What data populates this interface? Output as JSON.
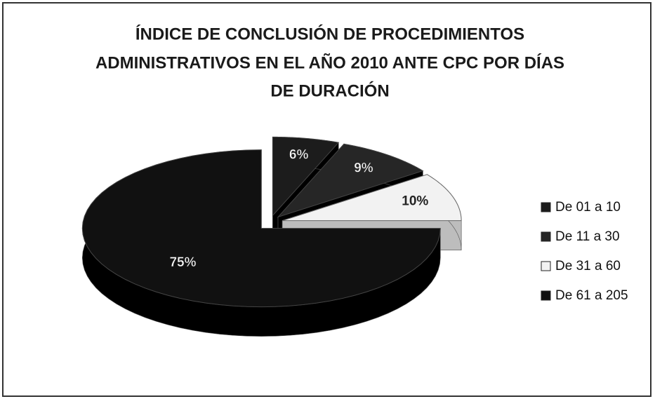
{
  "chart_data": {
    "type": "pie",
    "title": [
      "ÍNDICE DE CONCLUSIÓN DE PROCEDIMIENTOS",
      "ADMINISTRATIVOS EN EL AÑO 2010 ANTE CPC POR DÍAS",
      "DE DURACIÓN"
    ],
    "categories": [
      "De 01 a 10",
      "De 11 a 30",
      "De 31 a 60",
      "De 61 a 205"
    ],
    "values": [
      6,
      9,
      10,
      75
    ],
    "value_labels": [
      "6%",
      "9%",
      "10%",
      "75%"
    ],
    "colors": [
      "#1c1c1c",
      "#262626",
      "#f2f2f2",
      "#111111"
    ],
    "legend": "right"
  }
}
